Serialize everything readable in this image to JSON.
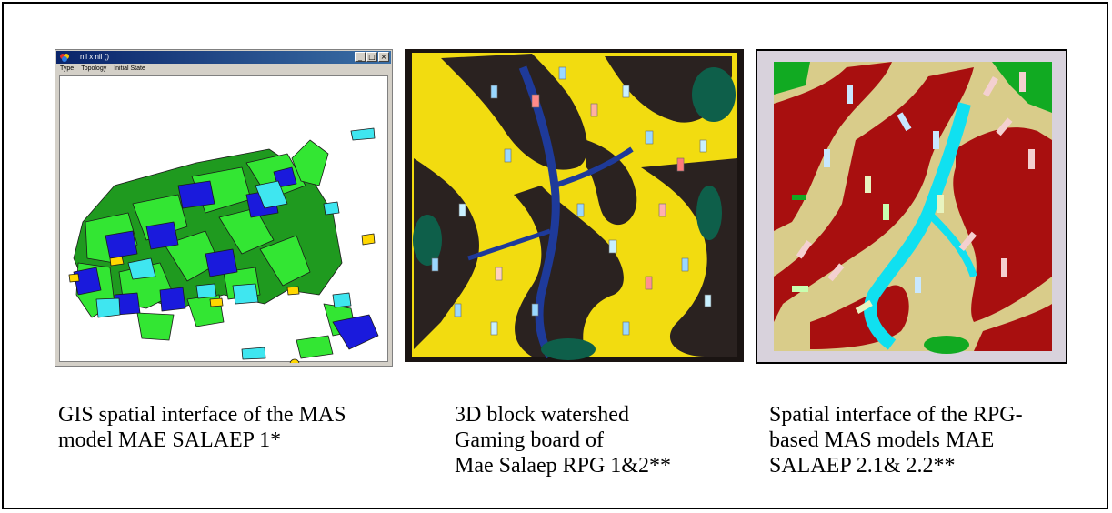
{
  "gis_window": {
    "title": "nil x nil  ()",
    "menu": [
      "Type",
      "Topology",
      "Initial State"
    ],
    "buttons": {
      "minimize": "_",
      "maximize": "□",
      "close": "×"
    }
  },
  "captions": {
    "left": [
      "GIS spatial interface of the MAS",
      "model MAE SALAEP 1*"
    ],
    "middle": [
      "3D block watershed",
      "Gaming board of",
      "Mae Salaep RPG 1&2**"
    ],
    "right": [
      "Spatial interface of the RPG-",
      "based MAS models MAE",
      "SALAEP 2.1& 2.2**"
    ]
  },
  "colors": {
    "gis_green": "#33e633",
    "gis_dark_green": "#1f9a1f",
    "gis_blue": "#1a1adc",
    "gis_cyan": "#3fe6f0",
    "gis_yellow": "#ffd700",
    "board_yellow": "#f2dc10",
    "board_black": "#2a2220",
    "board_blue": "#1e3a9a",
    "board_teal": "#0e5f4a",
    "map_red": "#a80f0f",
    "map_tan": "#d9cc8a",
    "map_cyan": "#10e0f0",
    "map_green": "#11aa22",
    "map_border": "#d8d2dc"
  }
}
